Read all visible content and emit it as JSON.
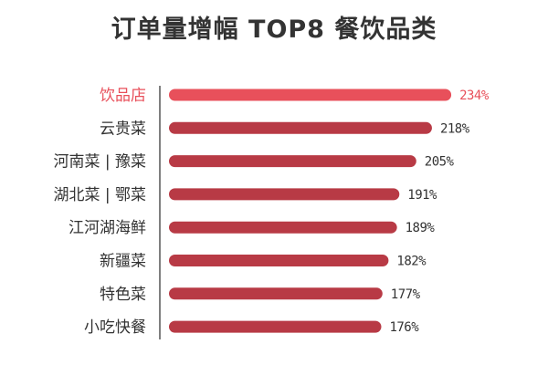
{
  "chart_data": {
    "type": "bar",
    "orientation": "horizontal",
    "title": "订单量增幅 TOP8 餐饮品类",
    "categories": [
      "饮品店",
      "云贵菜",
      "河南菜 | 豫菜",
      "湖北菜 | 鄂菜",
      "江河湖海鲜",
      "新疆菜",
      "特色菜",
      "小吃快餐"
    ],
    "values": [
      234,
      218,
      205,
      191,
      189,
      182,
      177,
      176
    ],
    "value_labels": [
      "234%",
      "218%",
      "205%",
      "191%",
      "189%",
      "182%",
      "177%",
      "176%"
    ],
    "unit": "%",
    "xlim": [
      0,
      240
    ],
    "grid": false,
    "legend": "none",
    "colors": {
      "highlight_bar": "#e8505b",
      "bar": "#b83a45",
      "highlight_text": "#e8505b",
      "text": "#333333",
      "axis": "#555555"
    },
    "highlight_index": 0
  }
}
